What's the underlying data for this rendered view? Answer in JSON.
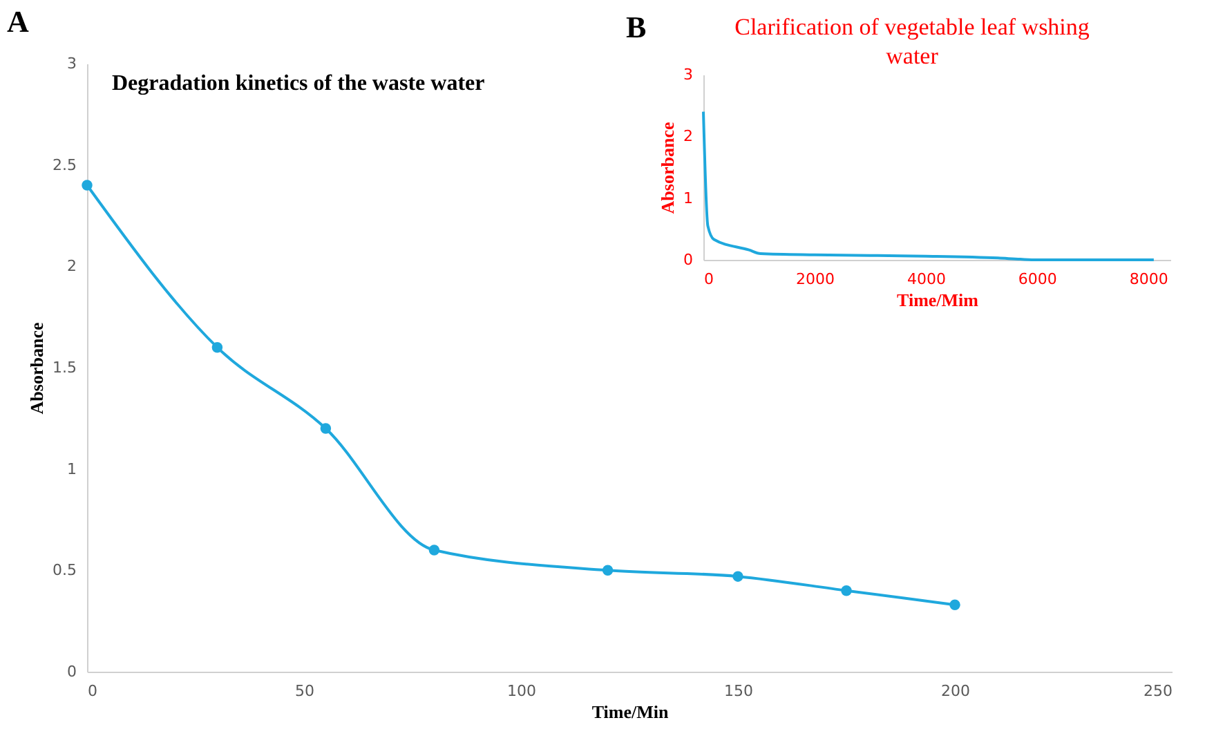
{
  "chart_data": [
    {
      "type": "line",
      "title": "Degradation kinetics of the waste water",
      "xlabel": "Time/Min",
      "ylabel": "Absorbance",
      "annotations": [
        "A"
      ],
      "x": [
        0,
        30,
        55,
        80,
        120,
        150,
        175,
        200
      ],
      "series": [
        {
          "color": "#1fa8dd",
          "values": [
            2.4,
            1.6,
            1.2,
            0.6,
            0.5,
            0.47,
            0.4,
            0.33
          ]
        }
      ],
      "xlim": [
        0,
        250
      ],
      "xticks": [
        0,
        50,
        100,
        150,
        200,
        250
      ],
      "ylim": [
        0,
        3
      ],
      "yticks": [
        0,
        0.5,
        1,
        1.5,
        2,
        2.5,
        3
      ],
      "marker": "circle",
      "grid": false
    },
    {
      "type": "line",
      "title": "Clarification of vegetable leaf wshing water",
      "xlabel": "Time/Mim",
      "ylabel": "Absorbance",
      "annotations": [
        "B"
      ],
      "x": [
        0,
        80,
        190,
        820,
        1030,
        2000,
        3000,
        4000,
        5300,
        5700,
        6000,
        8100
      ],
      "series": [
        {
          "color": "#1fa8dd",
          "values": [
            2.4,
            0.55,
            0.33,
            0.16,
            0.1,
            0.08,
            0.07,
            0.06,
            0.03,
            0.01,
            0,
            0
          ]
        }
      ],
      "xlim": [
        0,
        8400
      ],
      "xticks": [
        0,
        2000,
        4000,
        6000,
        8000
      ],
      "ylim": [
        0,
        3
      ],
      "yticks": [
        0,
        1,
        2,
        3
      ],
      "marker": "none",
      "grid": false
    }
  ]
}
